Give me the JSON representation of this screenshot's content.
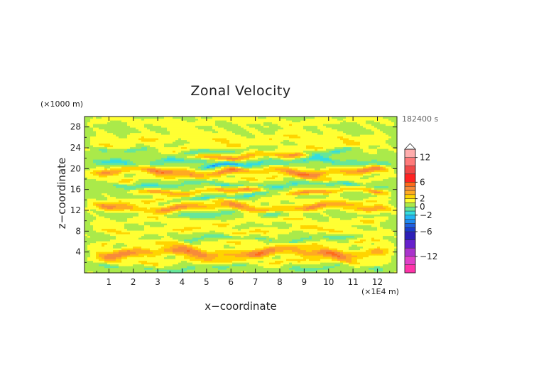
{
  "chart_data": {
    "type": "heatmap",
    "title": "Zonal Velocity",
    "xlabel": "x−coordinate",
    "ylabel": "z−coordinate",
    "x_unit": "(×1E4 m)",
    "y_unit": "(×1000 m)",
    "time_label": "182400 s",
    "xlim": [
      0,
      12.8
    ],
    "ylim": [
      0,
      30
    ],
    "x_ticks": [
      1,
      2,
      3,
      4,
      5,
      6,
      7,
      8,
      9,
      10,
      11,
      12
    ],
    "y_ticks": [
      4,
      8,
      12,
      16,
      20,
      24,
      28
    ],
    "colorbar": {
      "range": [
        -16,
        14
      ],
      "ticks": [
        12,
        6,
        2,
        0,
        -2,
        -6,
        -12
      ],
      "tick_labels": [
        "12",
        "6",
        "2",
        "0",
        "−2",
        "−6",
        "−12"
      ],
      "bins": [
        {
          "from": -16,
          "to": -14,
          "color": "#ff33aa"
        },
        {
          "from": -14,
          "to": -12,
          "color": "#e040c8"
        },
        {
          "from": -12,
          "to": -10,
          "color": "#aa33cc"
        },
        {
          "from": -10,
          "to": -8,
          "color": "#6620cc"
        },
        {
          "from": -8,
          "to": -6,
          "color": "#2d1fb8"
        },
        {
          "from": -6,
          "to": -5,
          "color": "#1a3dcc"
        },
        {
          "from": -5,
          "to": -4,
          "color": "#1f5fe0"
        },
        {
          "from": -4,
          "to": -3,
          "color": "#1f8af0"
        },
        {
          "from": -3,
          "to": -2,
          "color": "#22b4f5"
        },
        {
          "from": -2,
          "to": -1,
          "color": "#33dde0"
        },
        {
          "from": -1,
          "to": 0,
          "color": "#66e699"
        },
        {
          "from": 0,
          "to": 1,
          "color": "#aaea4a"
        },
        {
          "from": 1,
          "to": 2,
          "color": "#ffff33"
        },
        {
          "from": 2,
          "to": 3,
          "color": "#ffd400"
        },
        {
          "from": 3,
          "to": 4,
          "color": "#ffaa22"
        },
        {
          "from": 4,
          "to": 5,
          "color": "#f78a3a"
        },
        {
          "from": 5,
          "to": 6,
          "color": "#ff6a1a"
        },
        {
          "from": 6,
          "to": 8,
          "color": "#ff2222"
        },
        {
          "from": 8,
          "to": 10,
          "color": "#f04848"
        },
        {
          "from": 10,
          "to": 12,
          "color": "#ff7a7a"
        },
        {
          "from": 12,
          "to": 14,
          "color": "#ffadad"
        }
      ]
    },
    "field": {
      "background": 0.7,
      "bands": [
        {
          "z": 1.0,
          "w": 0.5,
          "x0": 0.0,
          "x1": 12.8,
          "v": -1.2
        },
        {
          "z": 2.2,
          "w": 0.6,
          "x0": 0.0,
          "x1": 12.8,
          "v": 1.6
        },
        {
          "z": 3.9,
          "w": 0.9,
          "x0": 0.0,
          "x1": 12.8,
          "v": 4.3
        },
        {
          "z": 5.7,
          "w": 0.6,
          "x0": 0.0,
          "x1": 12.8,
          "v": 1.5
        },
        {
          "z": 6.6,
          "w": 0.4,
          "x0": 3.5,
          "x1": 11.5,
          "v": -1.6
        },
        {
          "z": 8.2,
          "w": 0.6,
          "x0": 0.0,
          "x1": 12.8,
          "v": 1.7
        },
        {
          "z": 10.0,
          "w": 0.6,
          "x0": 0.0,
          "x1": 12.8,
          "v": 1.4
        },
        {
          "z": 11.4,
          "w": 0.5,
          "x0": 3.0,
          "x1": 8.5,
          "v": -1.8
        },
        {
          "z": 12.6,
          "w": 0.7,
          "x0": 0.0,
          "x1": 12.8,
          "v": 3.8
        },
        {
          "z": 14.0,
          "w": 0.5,
          "x0": 0.0,
          "x1": 12.8,
          "v": 1.5
        },
        {
          "z": 14.8,
          "w": 0.4,
          "x0": 3.0,
          "x1": 10.0,
          "v": -2.4
        },
        {
          "z": 15.7,
          "w": 0.5,
          "x0": 1.5,
          "x1": 12.8,
          "v": 3.6
        },
        {
          "z": 17.0,
          "w": 0.5,
          "x0": 0.0,
          "x1": 12.8,
          "v": -2.0
        },
        {
          "z": 18.2,
          "w": 0.5,
          "x0": 0.0,
          "x1": 12.8,
          "v": 1.6
        },
        {
          "z": 19.5,
          "w": 0.7,
          "x0": 0.0,
          "x1": 12.8,
          "v": 4.2
        },
        {
          "z": 20.3,
          "w": 0.4,
          "x0": 4.5,
          "x1": 7.5,
          "v": -4.2
        },
        {
          "z": 21.4,
          "w": 0.6,
          "x0": 0.0,
          "x1": 12.8,
          "v": -2.3
        },
        {
          "z": 22.5,
          "w": 0.6,
          "x0": 3.5,
          "x1": 9.5,
          "v": 4.0
        },
        {
          "z": 23.4,
          "w": 0.5,
          "x0": 0.0,
          "x1": 12.8,
          "v": -1.8
        },
        {
          "z": 24.0,
          "w": 0.6,
          "x0": 0.0,
          "x1": 12.8,
          "v": 1.5
        },
        {
          "z": 25.8,
          "w": 1.0,
          "x0": 0.0,
          "x1": 12.8,
          "v": 1.4
        },
        {
          "z": 27.6,
          "w": 1.0,
          "x0": 0.0,
          "x1": 12.8,
          "v": 0.3
        },
        {
          "z": 29.2,
          "w": 0.6,
          "x0": 0.0,
          "x1": 12.8,
          "v": 1.2
        }
      ]
    }
  }
}
